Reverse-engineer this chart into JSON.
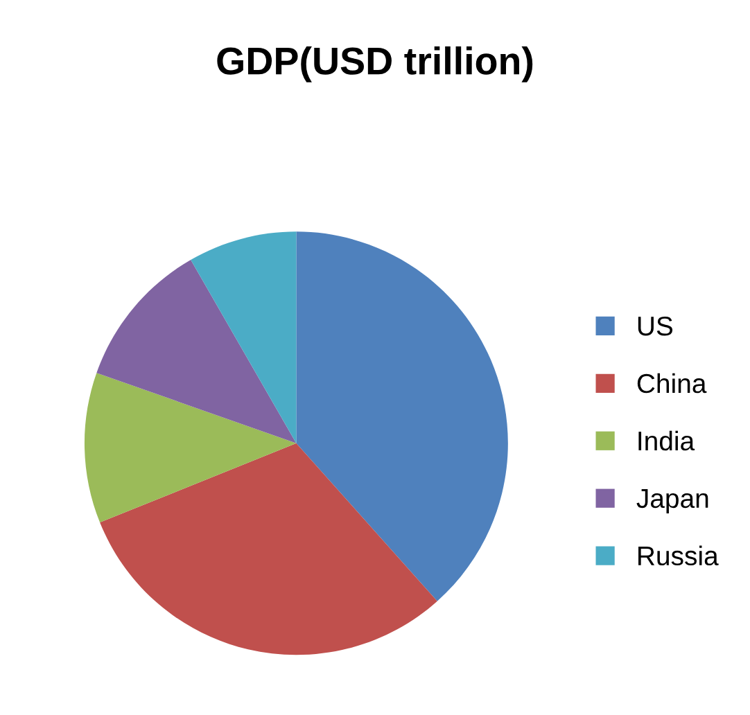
{
  "chart_data": {
    "type": "pie",
    "title": "GDP(USD trillion)",
    "categories": [
      "US",
      "China",
      "India",
      "Japan",
      "Russia"
    ],
    "values": [
      38.4,
      30.5,
      11.5,
      11.3,
      8.3
    ],
    "colors": [
      "#4f81bd",
      "#c0504d",
      "#9bbb59",
      "#8064a2",
      "#4bacc6"
    ],
    "legend": "right"
  }
}
